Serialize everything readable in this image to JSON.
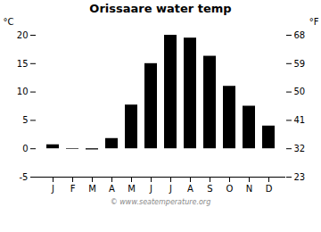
{
  "chart_data": {
    "type": "bar",
    "title": "Orissaare water temp",
    "categories": [
      "J",
      "F",
      "M",
      "A",
      "M",
      "J",
      "J",
      "A",
      "S",
      "O",
      "N",
      "D"
    ],
    "values": [
      0.7,
      -0.1,
      -0.2,
      1.8,
      7.7,
      15.0,
      20.0,
      19.5,
      16.3,
      11.0,
      7.5,
      4.0
    ],
    "ylabel": "°C",
    "ylim": [
      -5,
      20
    ],
    "yticks": [
      -5,
      0,
      5,
      10,
      15,
      20
    ],
    "y2label": "°F",
    "y2lim": [
      23,
      68
    ],
    "y2ticks": [
      23,
      32,
      41,
      50,
      59,
      68
    ],
    "annotations": [
      "© www.seatemperature.org"
    ],
    "grid": false
  }
}
